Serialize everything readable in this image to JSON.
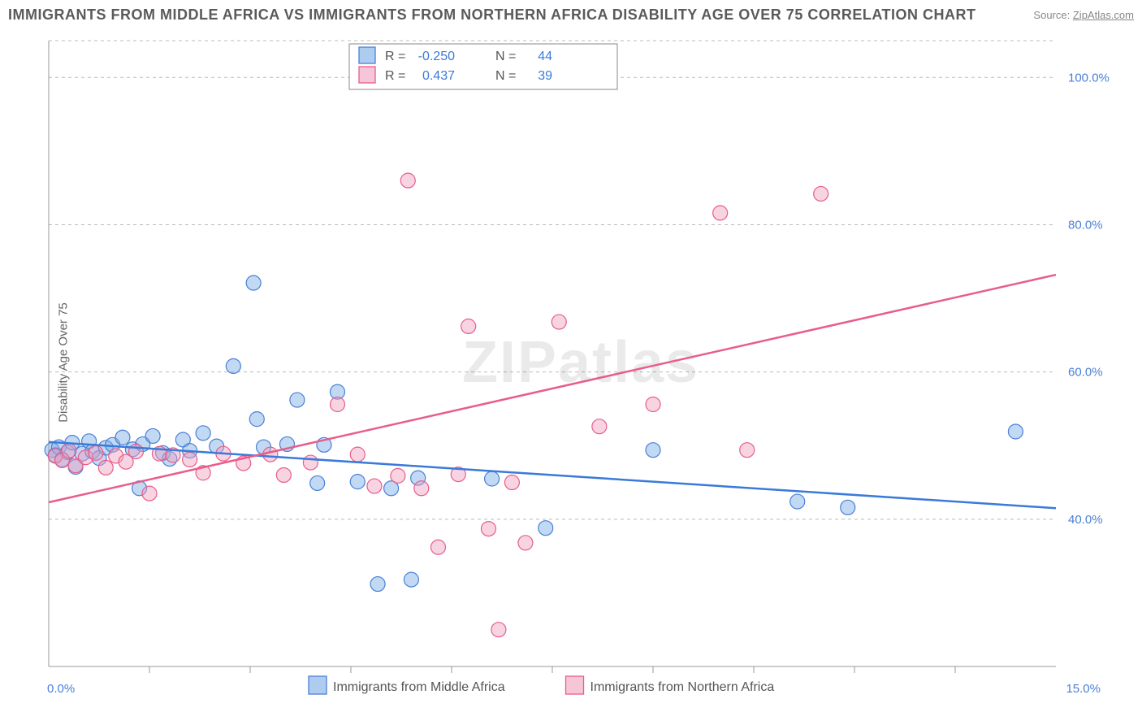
{
  "title": "IMMIGRANTS FROM MIDDLE AFRICA VS IMMIGRANTS FROM NORTHERN AFRICA DISABILITY AGE OVER 75 CORRELATION CHART",
  "source_label": "Source:",
  "source_link": "ZipAtlas.com",
  "y_axis_label": "Disability Age Over 75",
  "watermark": "ZIPatlas",
  "chart": {
    "type": "scatter",
    "xlim": [
      0,
      15
    ],
    "ylim": [
      20,
      105
    ],
    "x_ticks": [
      0,
      15
    ],
    "x_tick_labels": [
      "0.0%",
      "15.0%"
    ],
    "x_minor_ticks": [
      1.5,
      3,
      4.5,
      6,
      7.5,
      9,
      10.5,
      12,
      13.5
    ],
    "y_ticks": [
      40,
      60,
      80,
      100
    ],
    "y_tick_labels": [
      "40.0%",
      "60.0%",
      "80.0%",
      "100.0%"
    ],
    "grid_color": "#bbbbbb",
    "background": "#ffffff",
    "marker_radius": 9,
    "series": [
      {
        "name": "Immigrants from Middle Africa",
        "color_fill": "rgba(120,170,230,0.45)",
        "color_stroke": "#4a7fd6",
        "trend_color": "#3a7ad9",
        "R": "-0.250",
        "N": "44",
        "trend": {
          "x1": 0,
          "y1": 50.5,
          "x2": 15,
          "y2": 41.5
        },
        "points": [
          [
            0.05,
            49.4
          ],
          [
            0.1,
            48.7
          ],
          [
            0.15,
            49.8
          ],
          [
            0.2,
            48.1
          ],
          [
            0.28,
            49.1
          ],
          [
            0.35,
            50.4
          ],
          [
            0.4,
            47.1
          ],
          [
            0.5,
            48.9
          ],
          [
            0.6,
            50.6
          ],
          [
            0.65,
            49.2
          ],
          [
            0.75,
            48.3
          ],
          [
            0.85,
            49.7
          ],
          [
            0.95,
            50.1
          ],
          [
            1.1,
            51.1
          ],
          [
            1.25,
            49.5
          ],
          [
            1.35,
            44.2
          ],
          [
            1.4,
            50.2
          ],
          [
            1.55,
            51.3
          ],
          [
            1.7,
            49.0
          ],
          [
            1.8,
            48.2
          ],
          [
            2.0,
            50.8
          ],
          [
            2.1,
            49.3
          ],
          [
            2.3,
            51.7
          ],
          [
            2.5,
            49.9
          ],
          [
            2.75,
            60.8
          ],
          [
            3.05,
            72.1
          ],
          [
            3.1,
            53.6
          ],
          [
            3.2,
            49.8
          ],
          [
            3.55,
            50.2
          ],
          [
            3.7,
            56.2
          ],
          [
            4.0,
            44.9
          ],
          [
            4.1,
            50.1
          ],
          [
            4.3,
            57.3
          ],
          [
            4.6,
            45.1
          ],
          [
            4.9,
            31.2
          ],
          [
            5.1,
            44.2
          ],
          [
            5.4,
            31.8
          ],
          [
            5.5,
            45.6
          ],
          [
            6.6,
            45.5
          ],
          [
            7.4,
            38.8
          ],
          [
            9.0,
            49.4
          ],
          [
            11.15,
            42.4
          ],
          [
            11.9,
            41.6
          ],
          [
            14.4,
            51.9
          ]
        ]
      },
      {
        "name": "Immigrants from Northern Africa",
        "color_fill": "rgba(240,160,190,0.45)",
        "color_stroke": "#e85d8a",
        "trend_color": "#e85d8a",
        "R": "0.437",
        "N": "39",
        "trend": {
          "x1": 0,
          "y1": 42.3,
          "x2": 15,
          "y2": 73.2
        },
        "points": [
          [
            0.1,
            48.6
          ],
          [
            0.2,
            48.0
          ],
          [
            0.3,
            49.3
          ],
          [
            0.4,
            47.3
          ],
          [
            0.55,
            48.4
          ],
          [
            0.7,
            49.0
          ],
          [
            0.85,
            47.0
          ],
          [
            1.0,
            48.6
          ],
          [
            1.15,
            47.8
          ],
          [
            1.3,
            49.2
          ],
          [
            1.5,
            43.5
          ],
          [
            1.65,
            48.9
          ],
          [
            1.85,
            48.7
          ],
          [
            2.1,
            48.1
          ],
          [
            2.3,
            46.3
          ],
          [
            2.6,
            48.9
          ],
          [
            2.9,
            47.6
          ],
          [
            3.3,
            48.8
          ],
          [
            3.5,
            46.0
          ],
          [
            3.9,
            47.7
          ],
          [
            4.3,
            55.6
          ],
          [
            4.6,
            48.8
          ],
          [
            4.85,
            44.5
          ],
          [
            5.2,
            45.9
          ],
          [
            5.35,
            86.0
          ],
          [
            5.55,
            44.2
          ],
          [
            5.8,
            36.2
          ],
          [
            6.1,
            46.1
          ],
          [
            6.25,
            66.2
          ],
          [
            6.55,
            38.7
          ],
          [
            6.7,
            25.0
          ],
          [
            6.9,
            45.0
          ],
          [
            7.1,
            36.8
          ],
          [
            7.6,
            66.8
          ],
          [
            8.2,
            52.6
          ],
          [
            9.0,
            55.6
          ],
          [
            10.0,
            81.6
          ],
          [
            10.4,
            49.4
          ],
          [
            11.5,
            84.2
          ]
        ]
      }
    ]
  },
  "legend_top": {
    "r_label": "R =",
    "n_label": "N ="
  },
  "legend_bottom": {
    "items": [
      {
        "swatch_class": "legend-swatch-blue",
        "label": "Immigrants from Middle Africa"
      },
      {
        "swatch_class": "legend-swatch-pink",
        "label": "Immigrants from Northern Africa"
      }
    ]
  }
}
